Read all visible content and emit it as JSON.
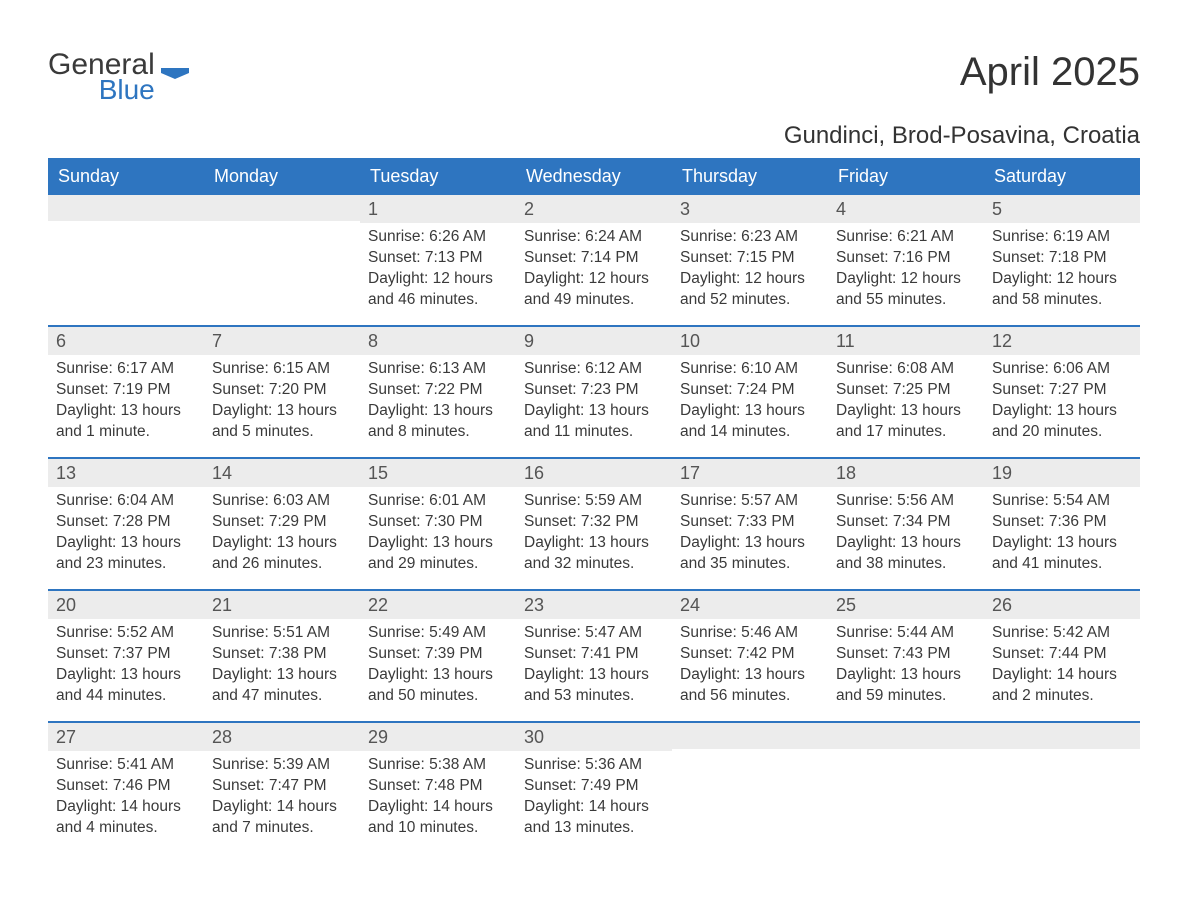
{
  "logo": {
    "word1": "General",
    "word2": "Blue"
  },
  "title": "April 2025",
  "location": "Gundinci, Brod-Posavina, Croatia",
  "colors": {
    "header_bg": "#2e75c0",
    "header_text": "#ffffff",
    "daynum_bg": "#ececec",
    "row_border": "#2e75c0",
    "body_text": "#3a3a3a",
    "page_bg": "#ffffff"
  },
  "day_names": [
    "Sunday",
    "Monday",
    "Tuesday",
    "Wednesday",
    "Thursday",
    "Friday",
    "Saturday"
  ],
  "labels": {
    "sunrise": "Sunrise: ",
    "sunset": "Sunset: ",
    "daylight": "Daylight: "
  },
  "weeks": [
    [
      {
        "day": "",
        "sunrise": "",
        "sunset": "",
        "daylight": ""
      },
      {
        "day": "",
        "sunrise": "",
        "sunset": "",
        "daylight": ""
      },
      {
        "day": "1",
        "sunrise": "6:26 AM",
        "sunset": "7:13 PM",
        "daylight": "12 hours and 46 minutes."
      },
      {
        "day": "2",
        "sunrise": "6:24 AM",
        "sunset": "7:14 PM",
        "daylight": "12 hours and 49 minutes."
      },
      {
        "day": "3",
        "sunrise": "6:23 AM",
        "sunset": "7:15 PM",
        "daylight": "12 hours and 52 minutes."
      },
      {
        "day": "4",
        "sunrise": "6:21 AM",
        "sunset": "7:16 PM",
        "daylight": "12 hours and 55 minutes."
      },
      {
        "day": "5",
        "sunrise": "6:19 AM",
        "sunset": "7:18 PM",
        "daylight": "12 hours and 58 minutes."
      }
    ],
    [
      {
        "day": "6",
        "sunrise": "6:17 AM",
        "sunset": "7:19 PM",
        "daylight": "13 hours and 1 minute."
      },
      {
        "day": "7",
        "sunrise": "6:15 AM",
        "sunset": "7:20 PM",
        "daylight": "13 hours and 5 minutes."
      },
      {
        "day": "8",
        "sunrise": "6:13 AM",
        "sunset": "7:22 PM",
        "daylight": "13 hours and 8 minutes."
      },
      {
        "day": "9",
        "sunrise": "6:12 AM",
        "sunset": "7:23 PM",
        "daylight": "13 hours and 11 minutes."
      },
      {
        "day": "10",
        "sunrise": "6:10 AM",
        "sunset": "7:24 PM",
        "daylight": "13 hours and 14 minutes."
      },
      {
        "day": "11",
        "sunrise": "6:08 AM",
        "sunset": "7:25 PM",
        "daylight": "13 hours and 17 minutes."
      },
      {
        "day": "12",
        "sunrise": "6:06 AM",
        "sunset": "7:27 PM",
        "daylight": "13 hours and 20 minutes."
      }
    ],
    [
      {
        "day": "13",
        "sunrise": "6:04 AM",
        "sunset": "7:28 PM",
        "daylight": "13 hours and 23 minutes."
      },
      {
        "day": "14",
        "sunrise": "6:03 AM",
        "sunset": "7:29 PM",
        "daylight": "13 hours and 26 minutes."
      },
      {
        "day": "15",
        "sunrise": "6:01 AM",
        "sunset": "7:30 PM",
        "daylight": "13 hours and 29 minutes."
      },
      {
        "day": "16",
        "sunrise": "5:59 AM",
        "sunset": "7:32 PM",
        "daylight": "13 hours and 32 minutes."
      },
      {
        "day": "17",
        "sunrise": "5:57 AM",
        "sunset": "7:33 PM",
        "daylight": "13 hours and 35 minutes."
      },
      {
        "day": "18",
        "sunrise": "5:56 AM",
        "sunset": "7:34 PM",
        "daylight": "13 hours and 38 minutes."
      },
      {
        "day": "19",
        "sunrise": "5:54 AM",
        "sunset": "7:36 PM",
        "daylight": "13 hours and 41 minutes."
      }
    ],
    [
      {
        "day": "20",
        "sunrise": "5:52 AM",
        "sunset": "7:37 PM",
        "daylight": "13 hours and 44 minutes."
      },
      {
        "day": "21",
        "sunrise": "5:51 AM",
        "sunset": "7:38 PM",
        "daylight": "13 hours and 47 minutes."
      },
      {
        "day": "22",
        "sunrise": "5:49 AM",
        "sunset": "7:39 PM",
        "daylight": "13 hours and 50 minutes."
      },
      {
        "day": "23",
        "sunrise": "5:47 AM",
        "sunset": "7:41 PM",
        "daylight": "13 hours and 53 minutes."
      },
      {
        "day": "24",
        "sunrise": "5:46 AM",
        "sunset": "7:42 PM",
        "daylight": "13 hours and 56 minutes."
      },
      {
        "day": "25",
        "sunrise": "5:44 AM",
        "sunset": "7:43 PM",
        "daylight": "13 hours and 59 minutes."
      },
      {
        "day": "26",
        "sunrise": "5:42 AM",
        "sunset": "7:44 PM",
        "daylight": "14 hours and 2 minutes."
      }
    ],
    [
      {
        "day": "27",
        "sunrise": "5:41 AM",
        "sunset": "7:46 PM",
        "daylight": "14 hours and 4 minutes."
      },
      {
        "day": "28",
        "sunrise": "5:39 AM",
        "sunset": "7:47 PM",
        "daylight": "14 hours and 7 minutes."
      },
      {
        "day": "29",
        "sunrise": "5:38 AM",
        "sunset": "7:48 PM",
        "daylight": "14 hours and 10 minutes."
      },
      {
        "day": "30",
        "sunrise": "5:36 AM",
        "sunset": "7:49 PM",
        "daylight": "14 hours and 13 minutes."
      },
      {
        "day": "",
        "sunrise": "",
        "sunset": "",
        "daylight": ""
      },
      {
        "day": "",
        "sunrise": "",
        "sunset": "",
        "daylight": ""
      },
      {
        "day": "",
        "sunrise": "",
        "sunset": "",
        "daylight": ""
      }
    ]
  ]
}
